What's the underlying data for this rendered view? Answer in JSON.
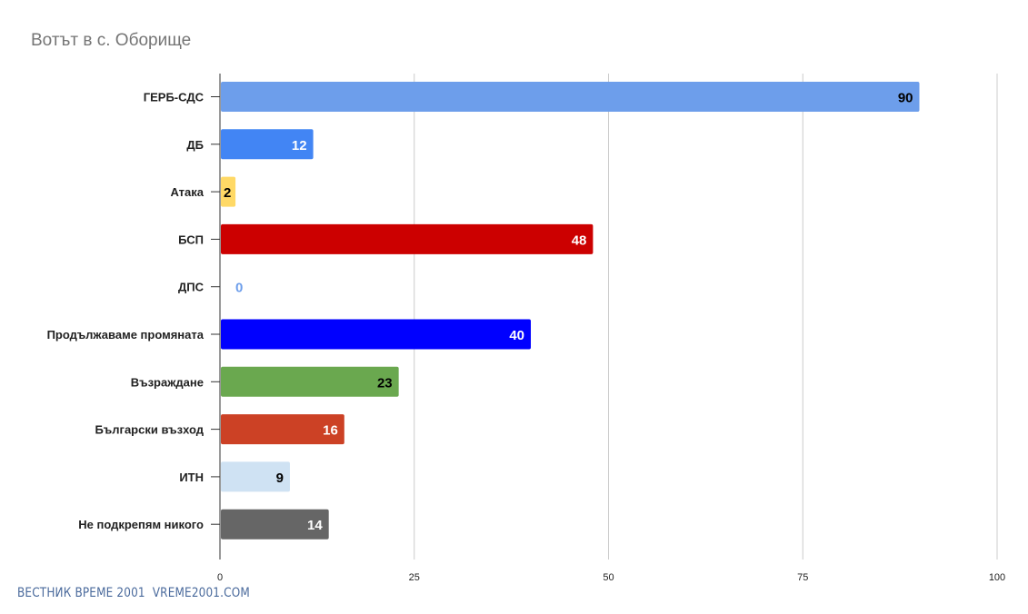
{
  "chart_data": {
    "type": "bar",
    "orientation": "horizontal",
    "title": "Вотът в с. Оборище",
    "categories": [
      "ГЕРБ-СДС",
      "ДБ",
      "Атака",
      "БСП",
      "ДПС",
      "Продължаваме промяната",
      "Възраждане",
      "Български възход",
      "ИТН",
      "Не подкрепям никого"
    ],
    "values": [
      90,
      12,
      2,
      48,
      0,
      40,
      23,
      16,
      9,
      14
    ],
    "bar_colors": [
      "#6d9eeb",
      "#4285f4",
      "#ffd966",
      "#cc0000",
      "#6d9eeb",
      "#0000ff",
      "#6aa84f",
      "#cc4125",
      "#cfe2f3",
      "#666666"
    ],
    "label_colors": [
      "#000000",
      "#ffffff",
      "#000000",
      "#ffffff",
      "#6d9eeb",
      "#ffffff",
      "#000000",
      "#ffffff",
      "#000000",
      "#ffffff"
    ],
    "xlim": [
      0,
      100
    ],
    "xticks": [
      0,
      25,
      50,
      75,
      100
    ],
    "xlabel": "",
    "ylabel": "",
    "grid": true,
    "legend": "none"
  },
  "footer": {
    "credit": "ВЕСТНИК ВРЕМЕ 2001  VREME2001.COM"
  }
}
